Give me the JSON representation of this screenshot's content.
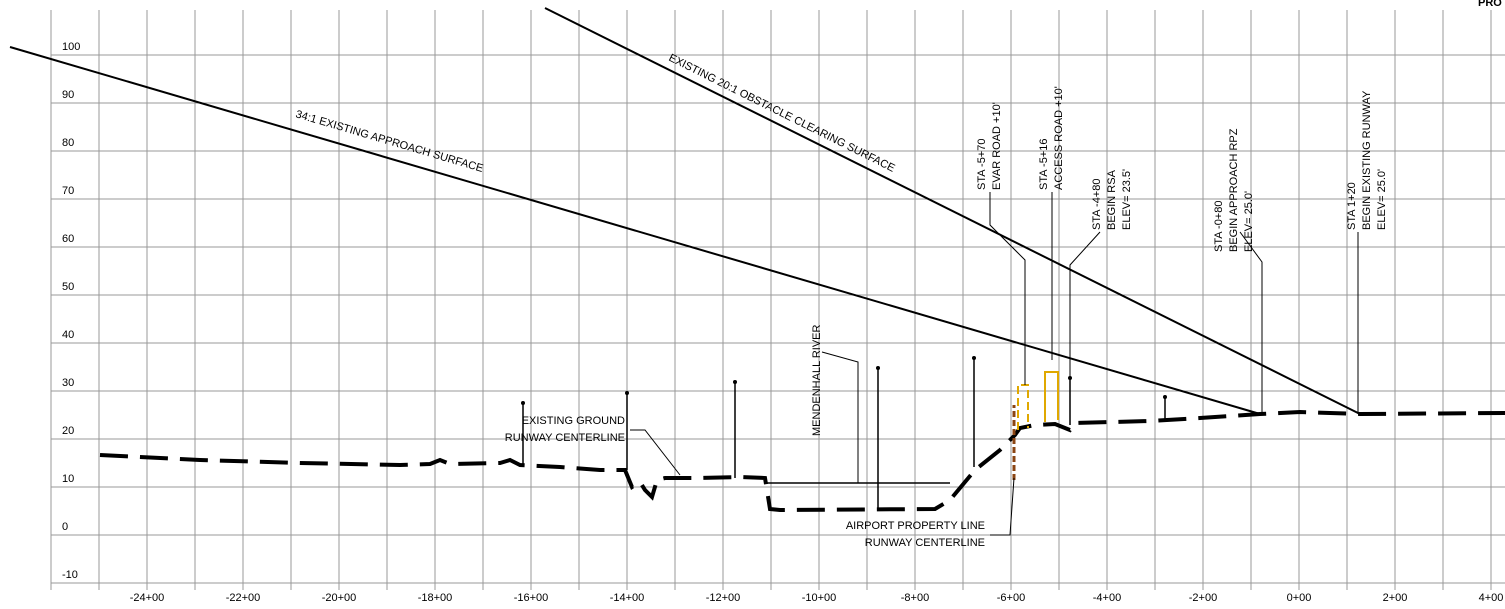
{
  "corner_title": "PRO",
  "y_axis_labels": [
    "100",
    "90",
    "80",
    "70",
    "60",
    "50",
    "40",
    "30",
    "20",
    "10",
    "0",
    "-10"
  ],
  "x_axis_labels": [
    "-24+00",
    "-22+00",
    "-20+00",
    "-18+00",
    "-16+00",
    "-14+00",
    "-12+00",
    "-10+00",
    "-8+00",
    "-6+00",
    "-4+00",
    "-2+00",
    "0+00",
    "2+00",
    "4+00"
  ],
  "surfaces": {
    "approach": "34:1 EXISTING APPROACH SURFACE",
    "obstacle": "EXISTING 20:1 OBSTACLE CLEARING SURFACE"
  },
  "callouts": [
    {
      "lines": [
        "STA -5+70",
        "EVAR ROAD +10'"
      ]
    },
    {
      "lines": [
        "STA -5+16",
        "ACCESS ROAD +10'"
      ]
    },
    {
      "lines": [
        "STA -4+80",
        "BEGIN RSA",
        "ELEV= 23.5'"
      ]
    },
    {
      "lines": [
        "STA -0+80",
        "BEGIN APPROACH RPZ",
        "ELEV= 25.0'"
      ]
    },
    {
      "lines": [
        "STA 1+20",
        "BEGIN EXISTING RUNWAY",
        "ELEV= 25.0'"
      ]
    }
  ],
  "river": "MENDENHALL RIVER",
  "left_labels": [
    "EXISTING GROUND",
    "RUNWAY CENTERLINE"
  ],
  "bottom_labels": [
    "AIRPORT PROPERTY LINE",
    "RUNWAY CENTERLINE"
  ]
}
